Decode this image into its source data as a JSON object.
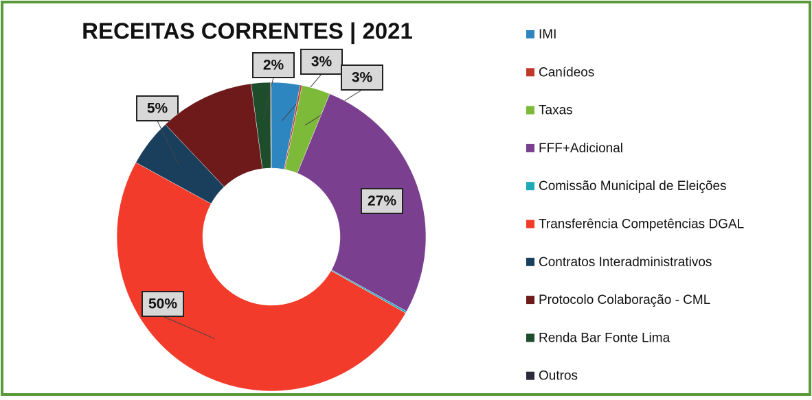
{
  "chart_data": {
    "type": "donut",
    "title": "RECEITAS CORRENTES | 2021",
    "categories": [
      "IMI",
      "Canídeos",
      "Taxas",
      "FFF+Adicional",
      "Comissão Municipal de Eleições",
      "Transferência Competências DGAL",
      "Contratos Interadministrativos",
      "Protocolo Colaboração - CML",
      "Renda Bar Fonte Lima",
      "Outros"
    ],
    "values": [
      3,
      0.2,
      3,
      27,
      0.2,
      50,
      5,
      10,
      2,
      0.1
    ],
    "value_labels": [
      "3%",
      null,
      "3%",
      "27%",
      null,
      "50%",
      "5%",
      null,
      "2%",
      null
    ],
    "colors": [
      "#2e86c1",
      "#c0392b",
      "#7dba3a",
      "#7b3f8f",
      "#1fa8b8",
      "#f23b2a",
      "#1a3f5c",
      "#6e1a1a",
      "#1e4d2b",
      "#2a2a3a"
    ],
    "legend": "right"
  }
}
